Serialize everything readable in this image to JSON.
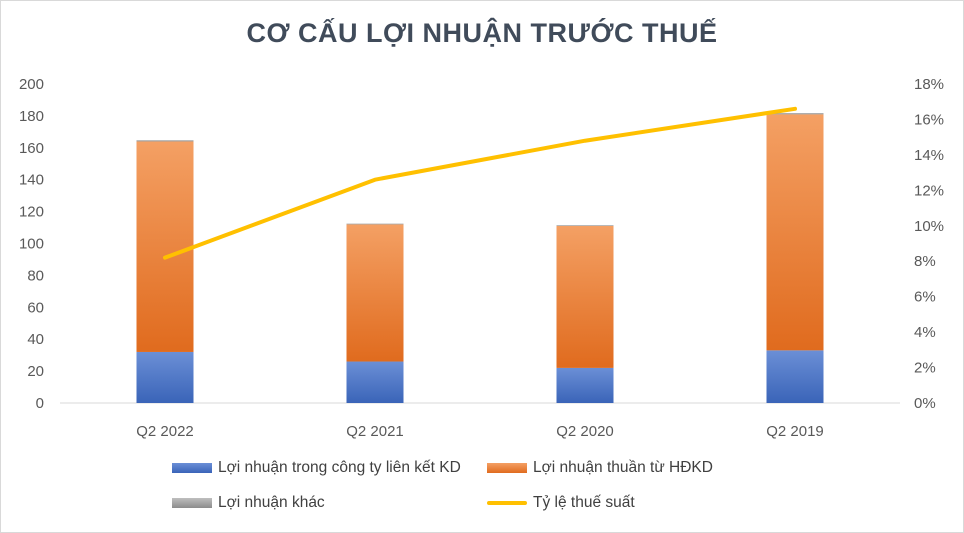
{
  "chart_data": {
    "type": "bar",
    "title": "CƠ CẤU LỢI NHUẬN TRƯỚC THUẾ",
    "categories": [
      "Q2 2022",
      "Q2 2021",
      "Q2 2020",
      "Q2 2019"
    ],
    "series": [
      {
        "name": "Lợi nhuận trong công ty liên kết KD",
        "type": "bar",
        "axis": "left",
        "color": "#4472c4",
        "values": [
          32,
          26,
          22,
          33
        ]
      },
      {
        "name": "Lợi nhuận thuần từ HĐKD",
        "type": "bar",
        "axis": "left",
        "color": "#ed7d31",
        "values": [
          132,
          86,
          89,
          148
        ]
      },
      {
        "name": "Lợi nhuận khác",
        "type": "bar",
        "axis": "left",
        "color": "#a5a5a5",
        "values": [
          0.8,
          0.5,
          0.5,
          0.8
        ]
      },
      {
        "name": "Tỷ lệ thuế suất",
        "type": "line",
        "axis": "right",
        "color": "#ffc000",
        "values": [
          0.082,
          0.126,
          0.148,
          0.166
        ]
      }
    ],
    "ylim": [
      0,
      200
    ],
    "yticks": [
      "0",
      "20",
      "40",
      "60",
      "80",
      "100",
      "120",
      "140",
      "160",
      "180",
      "200"
    ],
    "y2lim": [
      0,
      0.18
    ],
    "y2ticks": [
      "0%",
      "2%",
      "4%",
      "6%",
      "8%",
      "10%",
      "12%",
      "14%",
      "16%",
      "18%"
    ],
    "stacked": true,
    "grid": false,
    "legend_position": "bottom"
  }
}
